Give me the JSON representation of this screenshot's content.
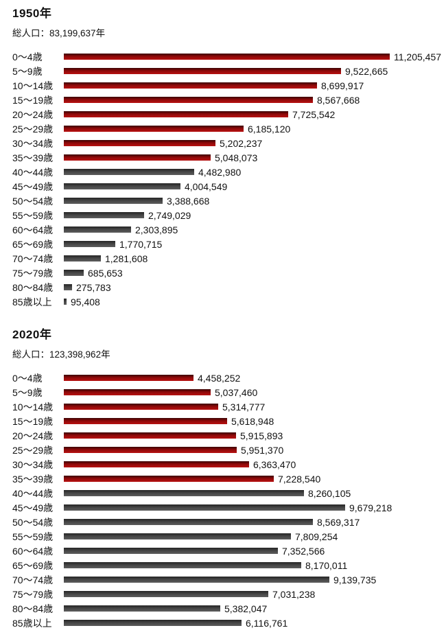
{
  "colors": {
    "background": "#ffffff",
    "text": "#111111",
    "bar_red_top": "#3a0404",
    "bar_red_mid": "#8c0909",
    "bar_red_bottom": "#b81111",
    "bar_gray_top": "#252525",
    "bar_gray_mid": "#474747",
    "bar_gray_bottom": "#5c5c5c"
  },
  "chart_data": [
    {
      "type": "bar",
      "orientation": "horizontal",
      "title": "1950年",
      "subtitle": "総人口：83,199,637年",
      "categories": [
        "0〜4歳",
        "5〜9歳",
        "10〜14歳",
        "15〜19歳",
        "20〜24歳",
        "25〜29歳",
        "30〜34歳",
        "35〜39歳",
        "40〜44歳",
        "45〜49歳",
        "50〜54歳",
        "55〜59歳",
        "60〜64歳",
        "65〜69歳",
        "70〜74歳",
        "75〜79歳",
        "80〜84歳",
        "85歳以上"
      ],
      "values": [
        11205457,
        9522665,
        8699917,
        8567668,
        7725542,
        6185120,
        5202237,
        5048073,
        4482980,
        4004549,
        3388668,
        2749029,
        2303895,
        1770715,
        1281608,
        685653,
        275783,
        95408
      ],
      "value_labels": [
        "11,205,457",
        "9,522,665",
        "8,699,917",
        "8,567,668",
        "7,725,542",
        "6,185,120",
        "5,202,237",
        "5,048,073",
        "4,482,980",
        "4,004,549",
        "3,388,668",
        "2,749,029",
        "2,303,895",
        "1,770,715",
        "1,281,608",
        "685,653",
        "275,783",
        "95,408"
      ],
      "red_rows": 8,
      "xlim": [
        0,
        11205457
      ],
      "grid": false,
      "legend": "none"
    },
    {
      "type": "bar",
      "orientation": "horizontal",
      "title": "2020年",
      "subtitle": "総人口：123,398,962年",
      "categories": [
        "0〜4歳",
        "5〜9歳",
        "10〜14歳",
        "15〜19歳",
        "20〜24歳",
        "25〜29歳",
        "30〜34歳",
        "35〜39歳",
        "40〜44歳",
        "45〜49歳",
        "50〜54歳",
        "55〜59歳",
        "60〜64歳",
        "65〜69歳",
        "70〜74歳",
        "75〜79歳",
        "80〜84歳",
        "85歳以上"
      ],
      "values": [
        4458252,
        5037460,
        5314777,
        5618948,
        5915893,
        5951370,
        6363470,
        7228540,
        8260105,
        9679218,
        8569317,
        7809254,
        7352566,
        8170011,
        9139735,
        7031238,
        5382047,
        6116761
      ],
      "value_labels": [
        "4,458,252",
        "5,037,460",
        "5,314,777",
        "5,618,948",
        "5,915,893",
        "5,951,370",
        "6,363,470",
        "7,228,540",
        "8,260,105",
        "9,679,218",
        "8,569,317",
        "7,809,254",
        "7,352,566",
        "8,170,011",
        "9,139,735",
        "7,031,238",
        "5,382,047",
        "6,116,761"
      ],
      "red_rows": 8,
      "xlim": [
        0,
        11205457
      ],
      "grid": false,
      "legend": "none"
    }
  ]
}
